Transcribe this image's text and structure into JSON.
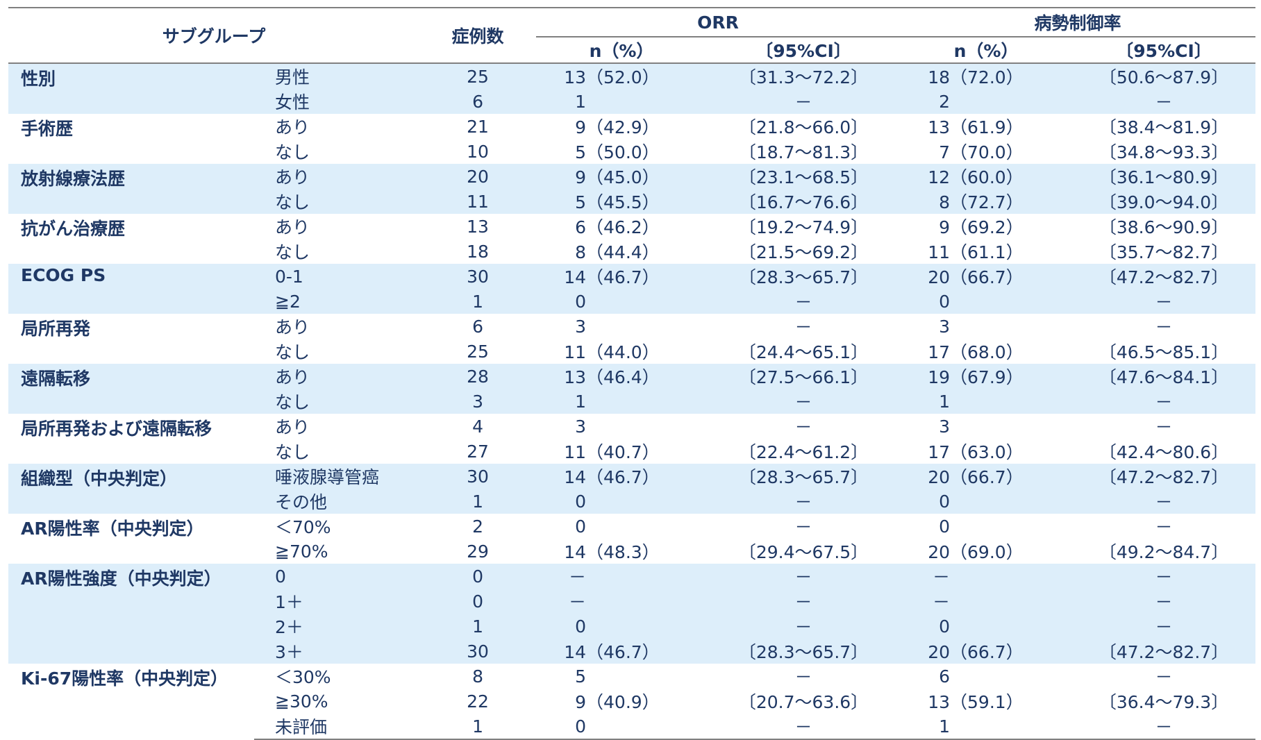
{
  "header": {
    "subgroup": "サブグループ",
    "cases": "症例数",
    "orr": "ORR",
    "dcr": "病勢制御率",
    "n_pct": "n（%）",
    "ci": "〔95%CI〕"
  },
  "rows": [
    {
      "cat": "性別",
      "sub": "男性",
      "cases": "25",
      "orr_n": "13",
      "orr_p": "（52.0）",
      "orr_ci": "〔31.3～72.2〕",
      "dcr_n": "18",
      "dcr_p": "（72.0）",
      "dcr_ci": "〔50.6～87.9〕"
    },
    {
      "cat": "",
      "sub": "女性",
      "cases": "6",
      "orr_n": "1",
      "orr_p": "",
      "orr_ci": "－",
      "dcr_n": "2",
      "dcr_p": "",
      "dcr_ci": "－"
    },
    {
      "cat": "手術歴",
      "sub": "あり",
      "cases": "21",
      "orr_n": "9",
      "orr_p": "（42.9）",
      "orr_ci": "〔21.8～66.0〕",
      "dcr_n": "13",
      "dcr_p": "（61.9）",
      "dcr_ci": "〔38.4～81.9〕"
    },
    {
      "cat": "",
      "sub": "なし",
      "cases": "10",
      "orr_n": "5",
      "orr_p": "（50.0）",
      "orr_ci": "〔18.7～81.3〕",
      "dcr_n": "7",
      "dcr_p": "（70.0）",
      "dcr_ci": "〔34.8～93.3〕"
    },
    {
      "cat": "放射線療法歴",
      "sub": "あり",
      "cases": "20",
      "orr_n": "9",
      "orr_p": "（45.0）",
      "orr_ci": "〔23.1～68.5〕",
      "dcr_n": "12",
      "dcr_p": "（60.0）",
      "dcr_ci": "〔36.1～80.9〕"
    },
    {
      "cat": "",
      "sub": "なし",
      "cases": "11",
      "orr_n": "5",
      "orr_p": "（45.5）",
      "orr_ci": "〔16.7～76.6〕",
      "dcr_n": "8",
      "dcr_p": "（72.7）",
      "dcr_ci": "〔39.0～94.0〕"
    },
    {
      "cat": "抗がん治療歴",
      "sub": "あり",
      "cases": "13",
      "orr_n": "6",
      "orr_p": "（46.2）",
      "orr_ci": "〔19.2～74.9〕",
      "dcr_n": "9",
      "dcr_p": "（69.2）",
      "dcr_ci": "〔38.6～90.9〕"
    },
    {
      "cat": "",
      "sub": "なし",
      "cases": "18",
      "orr_n": "8",
      "orr_p": "（44.4）",
      "orr_ci": "〔21.5～69.2〕",
      "dcr_n": "11",
      "dcr_p": "（61.1）",
      "dcr_ci": "〔35.7～82.7〕"
    },
    {
      "cat": "ECOG PS",
      "sub": "0-1",
      "cases": "30",
      "orr_n": "14",
      "orr_p": "（46.7）",
      "orr_ci": "〔28.3～65.7〕",
      "dcr_n": "20",
      "dcr_p": "（66.7）",
      "dcr_ci": "〔47.2～82.7〕"
    },
    {
      "cat": "",
      "sub": "≧2",
      "cases": "1",
      "orr_n": "0",
      "orr_p": "",
      "orr_ci": "－",
      "dcr_n": "0",
      "dcr_p": "",
      "dcr_ci": "－"
    },
    {
      "cat": "局所再発",
      "sub": "あり",
      "cases": "6",
      "orr_n": "3",
      "orr_p": "",
      "orr_ci": "－",
      "dcr_n": "3",
      "dcr_p": "",
      "dcr_ci": "－"
    },
    {
      "cat": "",
      "sub": "なし",
      "cases": "25",
      "orr_n": "11",
      "orr_p": "（44.0）",
      "orr_ci": "〔24.4～65.1〕",
      "dcr_n": "17",
      "dcr_p": "（68.0）",
      "dcr_ci": "〔46.5～85.1〕"
    },
    {
      "cat": "遠隔転移",
      "sub": "あり",
      "cases": "28",
      "orr_n": "13",
      "orr_p": "（46.4）",
      "orr_ci": "〔27.5～66.1〕",
      "dcr_n": "19",
      "dcr_p": "（67.9）",
      "dcr_ci": "〔47.6～84.1〕"
    },
    {
      "cat": "",
      "sub": "なし",
      "cases": "3",
      "orr_n": "1",
      "orr_p": "",
      "orr_ci": "－",
      "dcr_n": "1",
      "dcr_p": "",
      "dcr_ci": "－"
    },
    {
      "cat": "局所再発および遠隔転移",
      "sub": "あり",
      "cases": "4",
      "orr_n": "3",
      "orr_p": "",
      "orr_ci": "－",
      "dcr_n": "3",
      "dcr_p": "",
      "dcr_ci": "－"
    },
    {
      "cat": "",
      "sub": "なし",
      "cases": "27",
      "orr_n": "11",
      "orr_p": "（40.7）",
      "orr_ci": "〔22.4～61.2〕",
      "dcr_n": "17",
      "dcr_p": "（63.0）",
      "dcr_ci": "〔42.4～80.6〕"
    },
    {
      "cat": "組織型（中央判定）",
      "sub": "唾液腺導管癌",
      "cases": "30",
      "orr_n": "14",
      "orr_p": "（46.7）",
      "orr_ci": "〔28.3～65.7〕",
      "dcr_n": "20",
      "dcr_p": "（66.7）",
      "dcr_ci": "〔47.2～82.7〕"
    },
    {
      "cat": "",
      "sub": "その他",
      "cases": "1",
      "orr_n": "0",
      "orr_p": "",
      "orr_ci": "－",
      "dcr_n": "0",
      "dcr_p": "",
      "dcr_ci": "－"
    },
    {
      "cat": "AR陽性率（中央判定）",
      "sub": "＜70%",
      "cases": "2",
      "orr_n": "0",
      "orr_p": "",
      "orr_ci": "－",
      "dcr_n": "0",
      "dcr_p": "",
      "dcr_ci": "－"
    },
    {
      "cat": "",
      "sub": "≧70%",
      "cases": "29",
      "orr_n": "14",
      "orr_p": "（48.3）",
      "orr_ci": "〔29.4～67.5〕",
      "dcr_n": "20",
      "dcr_p": "（69.0）",
      "dcr_ci": "〔49.2～84.7〕"
    },
    {
      "cat": "AR陽性強度（中央判定）",
      "sub": "0",
      "cases": "0",
      "orr_n": "－",
      "orr_p": "",
      "orr_ci": "－",
      "dcr_n": "－",
      "dcr_p": "",
      "dcr_ci": "－"
    },
    {
      "cat": "",
      "sub": "1＋",
      "cases": "0",
      "orr_n": "－",
      "orr_p": "",
      "orr_ci": "－",
      "dcr_n": "－",
      "dcr_p": "",
      "dcr_ci": "－"
    },
    {
      "cat": "",
      "sub": "2＋",
      "cases": "1",
      "orr_n": "0",
      "orr_p": "",
      "orr_ci": "－",
      "dcr_n": "0",
      "dcr_p": "",
      "dcr_ci": "－"
    },
    {
      "cat": "",
      "sub": "3＋",
      "cases": "30",
      "orr_n": "14",
      "orr_p": "（46.7）",
      "orr_ci": "〔28.3～65.7〕",
      "dcr_n": "20",
      "dcr_p": "（66.7）",
      "dcr_ci": "〔47.2～82.7〕"
    },
    {
      "cat": "Ki-67陽性率（中央判定）",
      "sub": "＜30%",
      "cases": "8",
      "orr_n": "5",
      "orr_p": "",
      "orr_ci": "－",
      "dcr_n": "6",
      "dcr_p": "",
      "dcr_ci": "－"
    },
    {
      "cat": "",
      "sub": "≧30%",
      "cases": "22",
      "orr_n": "9",
      "orr_p": "（40.9）",
      "orr_ci": "〔20.7～63.6〕",
      "dcr_n": "13",
      "dcr_p": "（59.1）",
      "dcr_ci": "〔36.4～79.3〕"
    },
    {
      "cat": "",
      "sub": "未評価",
      "cases": "1",
      "orr_n": "0",
      "orr_p": "",
      "orr_ci": "－",
      "dcr_n": "1",
      "dcr_p": "",
      "dcr_ci": "－"
    }
  ],
  "groups_banded": [
    0,
    4,
    8,
    12,
    16,
    20
  ],
  "group_sizes": [
    2,
    2,
    2,
    2,
    2,
    2,
    2,
    2,
    2,
    2,
    4,
    3
  ],
  "colors": {
    "text": "#1f3864",
    "band": "#ddeefa",
    "rule": "#808080"
  }
}
